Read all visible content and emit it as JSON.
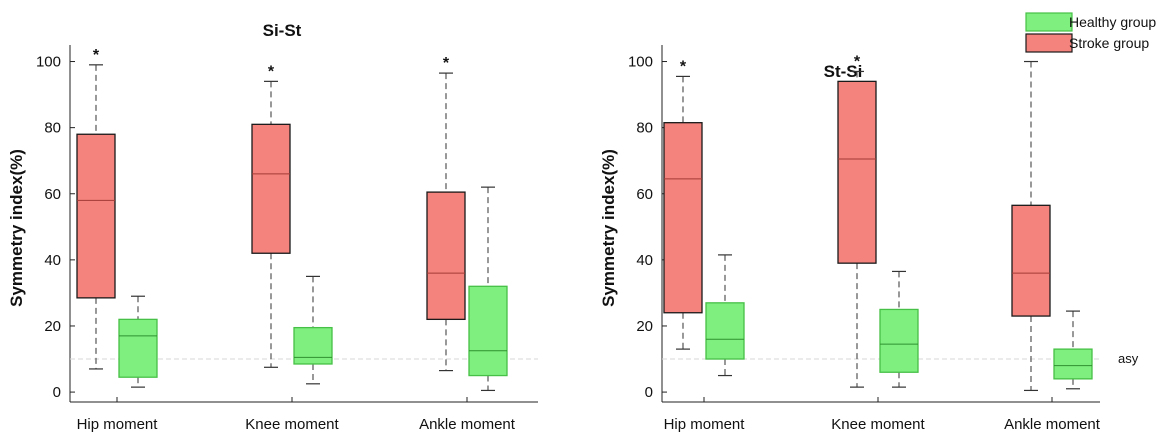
{
  "chart_data": [
    {
      "type": "box",
      "title": "Si-St",
      "ylabel": "Symmetry index(%)",
      "ylim": [
        -3,
        105
      ],
      "yticks": [
        0,
        20,
        40,
        60,
        80,
        100
      ],
      "categories": [
        "Hip moment",
        "Knee moment",
        "Ankle moment"
      ],
      "reference_line": {
        "y": 10,
        "label": ""
      },
      "series": [
        {
          "name": "Stroke group",
          "color": "#f4837d",
          "boxes": [
            {
              "min": 7,
              "q1": 28.5,
              "median": 58,
              "q3": 78,
              "max": 99,
              "sig": "*"
            },
            {
              "min": 7.5,
              "q1": 42,
              "median": 66,
              "q3": 81,
              "max": 94,
              "sig": "*"
            },
            {
              "min": 6.5,
              "q1": 22,
              "median": 36,
              "q3": 60.5,
              "max": 96.5,
              "sig": "*"
            }
          ]
        },
        {
          "name": "Healthy group",
          "color": "#7ff07f",
          "boxes": [
            {
              "min": 1.5,
              "q1": 4.5,
              "median": 17,
              "q3": 22,
              "max": 29
            },
            {
              "min": 2.5,
              "q1": 8.5,
              "median": 10.5,
              "q3": 19.5,
              "max": 35
            },
            {
              "min": 0.5,
              "q1": 5,
              "median": 12.5,
              "q3": 32,
              "max": 62
            }
          ]
        }
      ]
    },
    {
      "type": "box",
      "title": "St-Si",
      "ylabel": "Symmetry index(%)",
      "ylim": [
        -3,
        105
      ],
      "yticks": [
        0,
        20,
        40,
        60,
        80,
        100
      ],
      "categories": [
        "Hip moment",
        "Knee moment",
        "Ankle moment"
      ],
      "reference_line": {
        "y": 10,
        "label": "asy"
      },
      "series": [
        {
          "name": "Stroke group",
          "color": "#f4837d",
          "boxes": [
            {
              "min": 13,
              "q1": 24,
              "median": 64.5,
              "q3": 81.5,
              "max": 95.5,
              "sig": "*"
            },
            {
              "min": 1.5,
              "q1": 39,
              "median": 70.5,
              "q3": 94,
              "max": 97,
              "sig": "*"
            },
            {
              "min": 0.5,
              "q1": 23,
              "median": 36,
              "q3": 56.5,
              "max": 100,
              "sig": "*"
            }
          ]
        },
        {
          "name": "Healthy group",
          "color": "#7ff07f",
          "boxes": [
            {
              "min": 5,
              "q1": 10,
              "median": 16,
              "q3": 27,
              "max": 41.5
            },
            {
              "min": 1.5,
              "q1": 6,
              "median": 14.5,
              "q3": 25,
              "max": 36.5
            },
            {
              "min": 1,
              "q1": 4,
              "median": 8,
              "q3": 13,
              "max": 24.5
            }
          ]
        }
      ]
    }
  ],
  "legend": {
    "position": "top-right",
    "items": [
      {
        "label": "Healthy group",
        "color": "#7ff07f",
        "border": "#46c046"
      },
      {
        "label": "Stroke group",
        "color": "#f4837d",
        "border": "#1a1a1a"
      }
    ]
  }
}
